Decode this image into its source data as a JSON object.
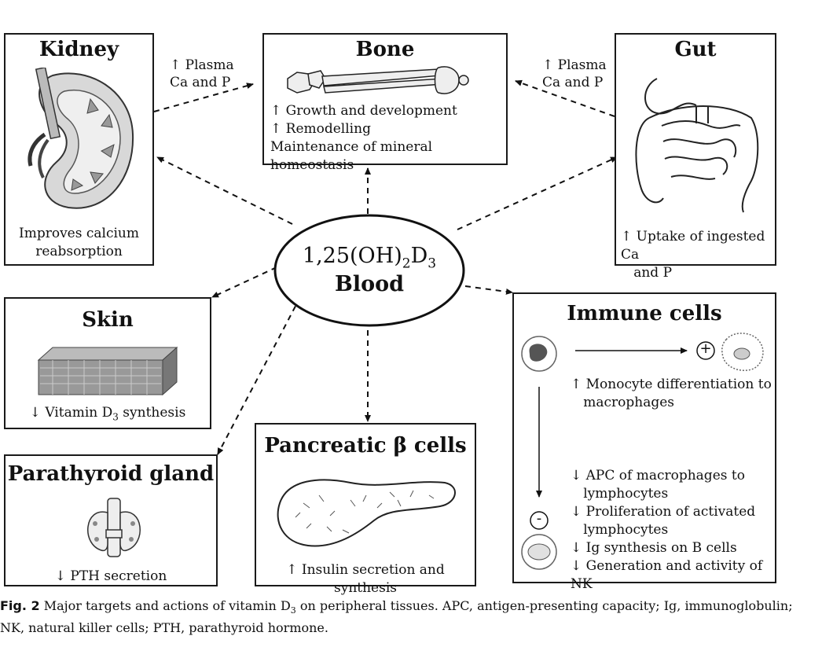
{
  "blood": {
    "compound_prefix": "1,25(OH)",
    "compound_sub1": "2",
    "compound_d": "D",
    "compound_sub2": "3",
    "label": "Blood"
  },
  "kidney": {
    "title": "Kidney",
    "action": "Improves calcium\nreabsorption"
  },
  "bone": {
    "title": "Bone",
    "actions": [
      "↑ Growth and development",
      "↑ Remodelling",
      "Maintenance of mineral homeostasis"
    ]
  },
  "gut": {
    "title": "Gut",
    "action": "↑ Uptake of ingested Ca\n   and P"
  },
  "skin": {
    "title": "Skin",
    "action_prefix": "↓ Vitamin D",
    "action_sub": "3",
    "action_suffix": " synthesis"
  },
  "parathyroid": {
    "title": "Parathyroid gland",
    "action": "↓ PTH secretion"
  },
  "pancreas": {
    "title": "Pancreatic β cells",
    "action": "↑ Insulin secretion and synthesis"
  },
  "immune": {
    "title": "Immune cells",
    "plus_symbol": "+",
    "minus_symbol": "-",
    "up_action": "↑ Monocyte differentiation to\n   macrophages",
    "down_actions": [
      "↓ APC of macrophages to\n   lymphocytes",
      "↓ Proliferation of activated\n   lymphocytes",
      "↓ Ig synthesis on B cells",
      "↓ Generation and activity of NK"
    ]
  },
  "arrow_labels": {
    "kidney_to_bone": "↑ Plasma\nCa and P",
    "gut_to_bone": "↑ Plasma\nCa and P"
  },
  "caption": {
    "label": "Fig. 2",
    "text_prefix": " Major targets and actions of vitamin D",
    "text_sub": "3",
    "text_suffix": " on peripheral tissues. APC, antigen-presenting capacity; Ig, immunoglobulin; NK, natural killer cells; PTH, parathyroid hormone."
  }
}
